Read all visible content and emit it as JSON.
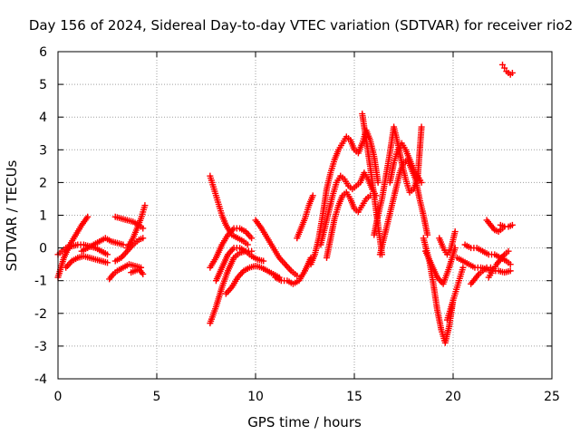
{
  "chart_data": {
    "type": "scatter",
    "title": "Day 156 of 2024, Sidereal Day-to-day VTEC variation (SDTVAR) for receiver rio2",
    "xlabel": "GPS time / hours",
    "ylabel": "SDTVAR / TECUs",
    "xlim": [
      0,
      25
    ],
    "ylim": [
      -4,
      6
    ],
    "xticks": [
      0,
      5,
      10,
      15,
      20,
      25
    ],
    "yticks": [
      -4,
      -3,
      -2,
      -1,
      0,
      1,
      2,
      3,
      4,
      5,
      6
    ],
    "grid": true,
    "marker": "+",
    "color": "#ff0000",
    "series": [
      {
        "name": "s01",
        "x": [
          0.0,
          0.3,
          0.6,
          0.9,
          1.2,
          1.5
        ],
        "y": [
          -0.9,
          -0.3,
          0.1,
          0.4,
          0.7,
          0.95
        ]
      },
      {
        "name": "s02",
        "x": [
          0.0,
          0.2,
          0.4,
          0.7,
          1.0,
          1.3,
          1.6,
          1.9,
          2.2,
          2.5
        ],
        "y": [
          -0.2,
          -0.1,
          0.0,
          0.05,
          0.1,
          0.1,
          0.05,
          0.0,
          -0.1,
          -0.2
        ]
      },
      {
        "name": "s03",
        "x": [
          0.4,
          0.7,
          1.0,
          1.3,
          1.6,
          1.9,
          2.2,
          2.5
        ],
        "y": [
          -0.6,
          -0.4,
          -0.3,
          -0.25,
          -0.3,
          -0.35,
          -0.4,
          -0.45
        ]
      },
      {
        "name": "s04",
        "x": [
          1.2,
          1.5,
          1.8,
          2.1,
          2.4,
          2.7,
          3.0,
          3.3
        ],
        "y": [
          -0.1,
          0.0,
          0.1,
          0.2,
          0.3,
          0.2,
          0.15,
          0.1
        ]
      },
      {
        "name": "s05",
        "x": [
          2.6,
          2.8,
          3.0,
          3.3,
          3.6,
          3.9,
          4.2
        ],
        "y": [
          -0.95,
          -0.8,
          -0.7,
          -0.6,
          -0.5,
          -0.55,
          -0.6
        ]
      },
      {
        "name": "s06",
        "x": [
          2.9,
          3.2,
          3.5,
          3.8,
          4.1,
          4.3
        ],
        "y": [
          -0.4,
          -0.3,
          -0.1,
          0.1,
          0.25,
          0.3
        ]
      },
      {
        "name": "s07",
        "x": [
          2.9,
          3.2,
          3.5,
          3.8,
          4.1,
          4.3
        ],
        "y": [
          0.95,
          0.9,
          0.85,
          0.8,
          0.7,
          0.6
        ]
      },
      {
        "name": "s08",
        "x": [
          3.5,
          3.8,
          4.0,
          4.2,
          4.4
        ],
        "y": [
          0.0,
          0.3,
          0.6,
          0.9,
          1.3
        ]
      },
      {
        "name": "s09",
        "x": [
          3.7,
          3.9,
          4.1,
          4.3
        ],
        "y": [
          -0.75,
          -0.7,
          -0.65,
          -0.8
        ]
      },
      {
        "name": "s10",
        "x": [
          7.7,
          7.9,
          8.1,
          8.3,
          8.5,
          8.8,
          9.1,
          9.4,
          9.6
        ],
        "y": [
          2.2,
          1.8,
          1.4,
          1.0,
          0.7,
          0.4,
          0.3,
          0.2,
          0.1
        ]
      },
      {
        "name": "s11",
        "x": [
          7.7,
          8.0,
          8.3,
          8.6,
          8.9,
          9.2,
          9.5,
          9.8
        ],
        "y": [
          -2.3,
          -1.8,
          -1.2,
          -0.7,
          -0.3,
          -0.15,
          -0.1,
          -0.1
        ]
      },
      {
        "name": "s12",
        "x": [
          7.7,
          8.0,
          8.3,
          8.6,
          8.9,
          9.2,
          9.5,
          9.8
        ],
        "y": [
          -0.6,
          -0.3,
          0.1,
          0.4,
          0.6,
          0.6,
          0.5,
          0.3
        ]
      },
      {
        "name": "s13",
        "x": [
          8.0,
          8.3,
          8.6,
          8.9,
          9.2,
          9.5,
          9.8,
          10.1,
          10.4
        ],
        "y": [
          -1.0,
          -0.6,
          -0.2,
          0.0,
          0.0,
          -0.1,
          -0.25,
          -0.35,
          -0.4
        ]
      },
      {
        "name": "s14",
        "x": [
          8.5,
          8.8,
          9.1,
          9.4,
          9.7,
          10.0,
          10.3,
          10.6,
          10.9,
          11.2
        ],
        "y": [
          -1.4,
          -1.2,
          -0.9,
          -0.7,
          -0.6,
          -0.55,
          -0.6,
          -0.7,
          -0.8,
          -0.9
        ]
      },
      {
        "name": "s15",
        "x": [
          10.0,
          10.3,
          10.6,
          10.9,
          11.2,
          11.5,
          11.8,
          12.1
        ],
        "y": [
          0.85,
          0.6,
          0.3,
          0.0,
          -0.3,
          -0.5,
          -0.7,
          -0.85
        ]
      },
      {
        "name": "s16",
        "x": [
          11.0,
          11.3,
          11.6,
          11.9,
          12.2,
          12.5,
          12.8
        ],
        "y": [
          -0.9,
          -1.0,
          -1.0,
          -1.1,
          -1.0,
          -0.7,
          -0.3
        ]
      },
      {
        "name": "s17",
        "x": [
          12.1,
          12.3,
          12.5,
          12.7,
          12.9
        ],
        "y": [
          0.3,
          0.6,
          0.9,
          1.3,
          1.6
        ]
      },
      {
        "name": "s18",
        "x": [
          12.8,
          13.0,
          13.2,
          13.4,
          13.6,
          13.8,
          14.0,
          14.2,
          14.4,
          14.6,
          14.8,
          15.0,
          15.2,
          15.4,
          15.6,
          15.8,
          16.0,
          16.2
        ],
        "y": [
          -0.5,
          -0.2,
          0.3,
          1.0,
          1.8,
          2.3,
          2.7,
          3.0,
          3.2,
          3.4,
          3.3,
          3.0,
          2.9,
          3.2,
          3.6,
          3.3,
          2.8,
          2.0
        ]
      },
      {
        "name": "s19",
        "x": [
          13.3,
          13.5,
          13.7,
          13.9,
          14.1,
          14.3,
          14.5,
          14.7,
          14.9,
          15.1,
          15.3,
          15.5,
          15.7,
          15.9,
          16.1
        ],
        "y": [
          0.1,
          0.6,
          1.1,
          1.6,
          2.0,
          2.2,
          2.1,
          1.9,
          1.8,
          1.9,
          2.0,
          2.3,
          2.1,
          1.8,
          1.6
        ]
      },
      {
        "name": "s20",
        "x": [
          13.6,
          13.8,
          14.0,
          14.2,
          14.4,
          14.6,
          14.8,
          15.0,
          15.2,
          15.4,
          15.6,
          15.8
        ],
        "y": [
          -0.3,
          0.3,
          0.9,
          1.3,
          1.6,
          1.7,
          1.5,
          1.2,
          1.1,
          1.3,
          1.5,
          1.6
        ]
      },
      {
        "name": "s21",
        "x": [
          15.4,
          15.6,
          15.8,
          16.0,
          16.2,
          16.4
        ],
        "y": [
          4.1,
          3.3,
          2.5,
          1.6,
          0.7,
          -0.2
        ]
      },
      {
        "name": "s22",
        "x": [
          16.0,
          16.2,
          16.4,
          16.6,
          16.8,
          17.0,
          17.2,
          17.4,
          17.6,
          17.8,
          18.0,
          18.2,
          18.4
        ],
        "y": [
          0.4,
          1.0,
          1.5,
          2.2,
          2.9,
          3.7,
          3.2,
          2.6,
          2.1,
          1.7,
          1.8,
          2.1,
          3.7
        ]
      },
      {
        "name": "s23",
        "x": [
          16.3,
          16.5,
          16.7,
          16.9,
          17.1,
          17.3,
          17.5,
          17.7,
          17.9,
          18.1,
          18.3,
          18.5,
          18.7
        ],
        "y": [
          -0.2,
          0.3,
          0.8,
          1.3,
          1.8,
          2.3,
          2.6,
          2.7,
          2.4,
          2.1,
          1.5,
          1.0,
          0.4
        ]
      },
      {
        "name": "s24",
        "x": [
          16.8,
          17.0,
          17.2,
          17.4,
          17.6,
          17.8,
          18.0,
          18.2,
          18.4
        ],
        "y": [
          2.0,
          2.6,
          3.0,
          3.2,
          3.0,
          2.7,
          2.4,
          2.2,
          2.0
        ]
      },
      {
        "name": "s25",
        "x": [
          18.5,
          18.8,
          19.0,
          19.2,
          19.4,
          19.6,
          19.8,
          20.0
        ],
        "y": [
          0.3,
          -0.4,
          -1.1,
          -1.9,
          -2.5,
          -2.9,
          -2.4,
          -1.6
        ]
      },
      {
        "name": "s26",
        "x": [
          18.6,
          18.9,
          19.2,
          19.5,
          19.8,
          20.1
        ],
        "y": [
          -0.1,
          -0.5,
          -0.9,
          -1.1,
          -0.6,
          0.0
        ]
      },
      {
        "name": "s27",
        "x": [
          19.3,
          19.5,
          19.7,
          19.9,
          20.1
        ],
        "y": [
          0.3,
          0.0,
          -0.2,
          0.0,
          0.5
        ]
      },
      {
        "name": "s28",
        "x": [
          19.7,
          19.9,
          20.1,
          20.3,
          20.5
        ],
        "y": [
          -2.2,
          -1.8,
          -1.4,
          -1.0,
          -0.6
        ]
      },
      {
        "name": "s29",
        "x": [
          20.2,
          20.5,
          20.8,
          21.1,
          21.4,
          21.7,
          22.0,
          22.3,
          22.6,
          22.9
        ],
        "y": [
          -0.3,
          -0.4,
          -0.5,
          -0.6,
          -0.6,
          -0.65,
          -0.7,
          -0.7,
          -0.75,
          -0.7
        ]
      },
      {
        "name": "s30",
        "x": [
          20.6,
          20.9,
          21.2,
          21.5,
          21.8,
          22.1,
          22.4,
          22.7,
          22.9
        ],
        "y": [
          0.1,
          0.0,
          0.0,
          -0.1,
          -0.2,
          -0.2,
          -0.3,
          -0.4,
          -0.5
        ]
      },
      {
        "name": "s31",
        "x": [
          20.9,
          21.1,
          21.3,
          21.5,
          21.7,
          21.9
        ],
        "y": [
          -1.1,
          -0.95,
          -0.8,
          -0.7,
          -0.6,
          -0.6
        ]
      },
      {
        "name": "s32",
        "x": [
          21.8,
          22.0,
          22.2,
          22.4,
          22.6,
          22.8
        ],
        "y": [
          -0.9,
          -0.7,
          -0.5,
          -0.35,
          -0.2,
          -0.1
        ]
      },
      {
        "name": "s33",
        "x": [
          21.7,
          21.9,
          22.1,
          22.3,
          22.5
        ],
        "y": [
          0.85,
          0.7,
          0.55,
          0.5,
          0.6
        ]
      },
      {
        "name": "s34",
        "x": [
          22.5,
          22.6,
          22.7,
          22.8,
          22.9,
          23.0
        ],
        "y": [
          5.6,
          5.5,
          5.4,
          5.35,
          5.3,
          5.35
        ]
      },
      {
        "name": "s35",
        "x": [
          22.4,
          22.6,
          22.8,
          23.0
        ],
        "y": [
          0.7,
          0.65,
          0.65,
          0.7
        ]
      }
    ]
  }
}
